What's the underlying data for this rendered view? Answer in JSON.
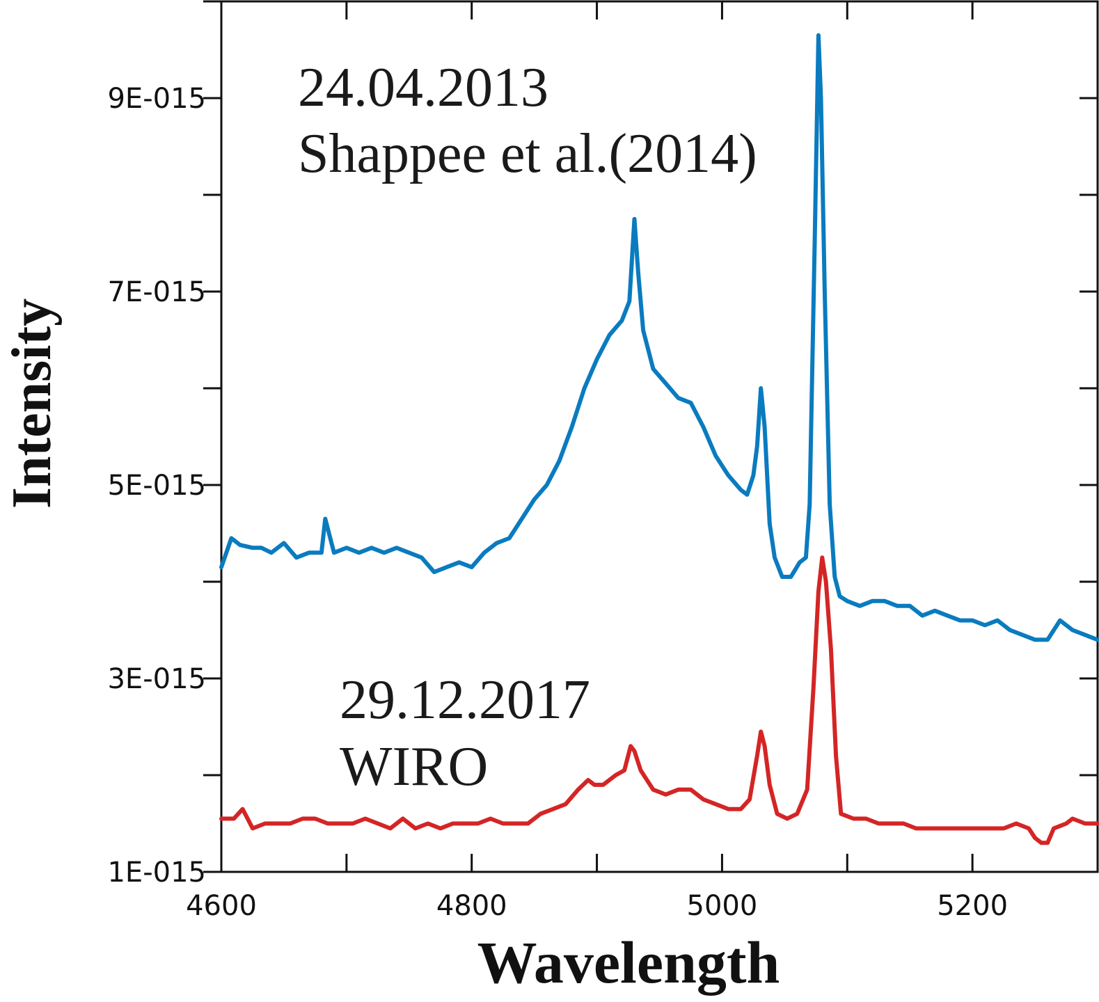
{
  "chart_data": {
    "type": "line",
    "xlabel": "Wavelength",
    "ylabel": "Intensity",
    "xlim": [
      4600,
      5300
    ],
    "ylim": [
      1e-15,
      1e-14
    ],
    "x_ticks": [
      4600,
      4800,
      5000,
      5200
    ],
    "x_tick_labels": [
      "4600",
      "4800",
      "5000",
      "5200"
    ],
    "y_ticks": [
      1e-15,
      3e-15,
      5e-15,
      7e-15,
      9e-15
    ],
    "y_tick_labels": [
      "1E-015",
      "3E-015",
      "5E-015",
      "7E-015",
      "9E-015"
    ],
    "grid": false,
    "annotations": [
      {
        "lines": [
          "24.04.2013",
          "Shappee et al.(2014)"
        ],
        "series": 0
      },
      {
        "lines": [
          "29.12.2017",
          "WIRO"
        ],
        "series": 1
      }
    ],
    "series": [
      {
        "color": "#0a7bbf",
        "x": [
          4600,
          4608,
          4615,
          4625,
          4632,
          4640,
          4650,
          4660,
          4670,
          4680,
          4683,
          4690,
          4700,
          4710,
          4720,
          4730,
          4740,
          4750,
          4760,
          4770,
          4780,
          4790,
          4800,
          4810,
          4820,
          4830,
          4840,
          4850,
          4860,
          4870,
          4880,
          4890,
          4900,
          4910,
          4920,
          4926,
          4930,
          4933,
          4937,
          4945,
          4955,
          4965,
          4975,
          4985,
          4995,
          5005,
          5015,
          5020,
          5025,
          5028,
          5031,
          5034,
          5038,
          5042,
          5048,
          5055,
          5062,
          5067,
          5070,
          5074,
          5077,
          5079,
          5082,
          5086,
          5090,
          5094,
          5100,
          5110,
          5120,
          5130,
          5140,
          5150,
          5160,
          5170,
          5180,
          5190,
          5200,
          5210,
          5220,
          5230,
          5240,
          5250,
          5260,
          5270,
          5280,
          5290,
          5300
        ],
        "y": [
          4.15e-15,
          4.45e-15,
          4.38e-15,
          4.35e-15,
          4.35e-15,
          4.3e-15,
          4.4e-15,
          4.25e-15,
          4.3e-15,
          4.3e-15,
          4.65e-15,
          4.3e-15,
          4.35e-15,
          4.3e-15,
          4.35e-15,
          4.3e-15,
          4.35e-15,
          4.3e-15,
          4.25e-15,
          4.1e-15,
          4.15e-15,
          4.2e-15,
          4.15e-15,
          4.3e-15,
          4.4e-15,
          4.45e-15,
          4.65e-15,
          4.85e-15,
          5e-15,
          5.25e-15,
          5.6e-15,
          6e-15,
          6.3e-15,
          6.55e-15,
          6.7e-15,
          6.9e-15,
          7.75e-15,
          7.2e-15,
          6.6e-15,
          6.2e-15,
          6.05e-15,
          5.9e-15,
          5.85e-15,
          5.6e-15,
          5.3e-15,
          5.1e-15,
          4.95e-15,
          4.9e-15,
          5.1e-15,
          5.4e-15,
          6e-15,
          5.6e-15,
          4.6e-15,
          4.25e-15,
          4.05e-15,
          4.05e-15,
          4.2e-15,
          4.25e-15,
          4.8e-15,
          7.5e-15,
          9.65e-15,
          9e-15,
          7e-15,
          4.8e-15,
          4.05e-15,
          3.85e-15,
          3.8e-15,
          3.75e-15,
          3.8e-15,
          3.8e-15,
          3.75e-15,
          3.75e-15,
          3.65e-15,
          3.7e-15,
          3.65e-15,
          3.6e-15,
          3.6e-15,
          3.55e-15,
          3.6e-15,
          3.5e-15,
          3.45e-15,
          3.4e-15,
          3.4e-15,
          3.6e-15,
          3.5e-15,
          3.45e-15,
          3.4e-15
        ]
      },
      {
        "color": "#d42525",
        "x": [
          4600,
          4610,
          4617,
          4625,
          4635,
          4645,
          4655,
          4665,
          4675,
          4685,
          4695,
          4705,
          4715,
          4725,
          4735,
          4745,
          4755,
          4765,
          4775,
          4785,
          4795,
          4805,
          4815,
          4825,
          4835,
          4845,
          4855,
          4865,
          4875,
          4885,
          4893,
          4898,
          4905,
          4915,
          4922,
          4927,
          4930,
          4935,
          4940,
          4945,
          4955,
          4965,
          4975,
          4985,
          4995,
          5005,
          5015,
          5022,
          5028,
          5031,
          5034,
          5038,
          5044,
          5052,
          5060,
          5068,
          5073,
          5077,
          5080,
          5083,
          5087,
          5091,
          5095,
          5105,
          5115,
          5125,
          5135,
          5145,
          5155,
          5165,
          5175,
          5185,
          5195,
          5205,
          5215,
          5225,
          5235,
          5245,
          5250,
          5255,
          5260,
          5265,
          5275,
          5280,
          5290,
          5300
        ],
        "y": [
          1.55e-15,
          1.55e-15,
          1.65e-15,
          1.45e-15,
          1.5e-15,
          1.5e-15,
          1.5e-15,
          1.55e-15,
          1.55e-15,
          1.5e-15,
          1.5e-15,
          1.5e-15,
          1.55e-15,
          1.5e-15,
          1.45e-15,
          1.55e-15,
          1.45e-15,
          1.5e-15,
          1.45e-15,
          1.5e-15,
          1.5e-15,
          1.5e-15,
          1.55e-15,
          1.5e-15,
          1.5e-15,
          1.5e-15,
          1.6e-15,
          1.65e-15,
          1.7e-15,
          1.85e-15,
          1.95e-15,
          1.9e-15,
          1.9e-15,
          2e-15,
          2.05e-15,
          2.3e-15,
          2.25e-15,
          2.05e-15,
          1.95e-15,
          1.85e-15,
          1.8e-15,
          1.85e-15,
          1.85e-15,
          1.75e-15,
          1.7e-15,
          1.65e-15,
          1.65e-15,
          1.75e-15,
          2.2e-15,
          2.45e-15,
          2.3e-15,
          1.9e-15,
          1.6e-15,
          1.55e-15,
          1.6e-15,
          1.85e-15,
          2.9e-15,
          3.9e-15,
          4.25e-15,
          4e-15,
          3.3e-15,
          2.2e-15,
          1.6e-15,
          1.55e-15,
          1.55e-15,
          1.5e-15,
          1.5e-15,
          1.5e-15,
          1.45e-15,
          1.45e-15,
          1.45e-15,
          1.45e-15,
          1.45e-15,
          1.45e-15,
          1.45e-15,
          1.45e-15,
          1.5e-15,
          1.45e-15,
          1.35e-15,
          1.3e-15,
          1.3e-15,
          1.45e-15,
          1.5e-15,
          1.55e-15,
          1.5e-15,
          1.5e-15
        ]
      }
    ]
  }
}
